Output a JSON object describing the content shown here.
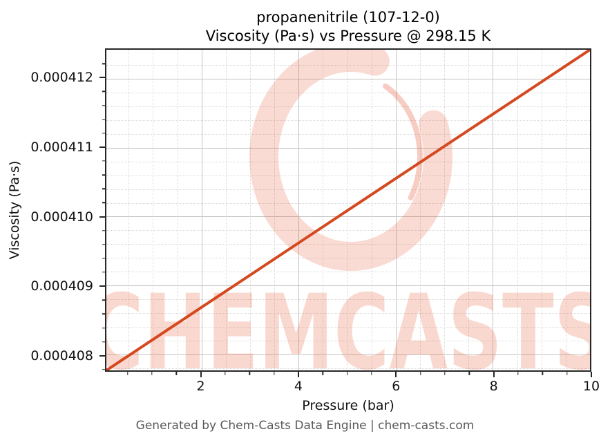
{
  "page": {
    "footer": "Generated by Chem-Casts Data Engine | chem-casts.com"
  },
  "watermark": {
    "text": "CHEMCASTS",
    "color": "#e65a37"
  },
  "chart_data": {
    "type": "line",
    "title": "propanenitrile (107-12-0)",
    "subtitle": "Viscosity (Pa·s) vs Pressure @ 298.15 K",
    "xlabel": "Pressure (bar)",
    "ylabel": "Viscosity (Pa·s)",
    "xlim": [
      0.04,
      10
    ],
    "ylim": [
      0.00040777,
      0.00041242
    ],
    "xticks": [
      2,
      4,
      6,
      8,
      10
    ],
    "xtick_labels": [
      "2",
      "4",
      "6",
      "8",
      "10"
    ],
    "yticks": [
      0.000408,
      0.000409,
      0.00041,
      0.000411,
      0.000412
    ],
    "ytick_labels": [
      "0.000408",
      "0.000409",
      "0.000410",
      "0.000411",
      "0.000412"
    ],
    "minor_xticks": [
      0.5,
      1,
      1.5,
      2.5,
      3,
      3.5,
      4.5,
      5,
      5.5,
      6.5,
      7,
      7.5,
      8.5,
      9,
      9.5
    ],
    "minor_yticks": [
      0.0004078,
      0.0004082,
      0.0004084,
      0.0004086,
      0.0004088,
      0.0004092,
      0.0004094,
      0.0004096,
      0.0004098,
      0.0004102,
      0.0004104,
      0.0004106,
      0.0004108,
      0.0004112,
      0.0004114,
      0.0004116,
      0.0004118,
      0.0004122
    ],
    "grid": {
      "major": true,
      "minor": true
    },
    "legend": null,
    "series": [
      {
        "name": "viscosity-vs-pressure",
        "color": "#d4491f",
        "x": [
          0.04,
          2,
          4,
          6,
          8,
          10
        ],
        "y": [
          0.00040777,
          0.000408685,
          0.000409619,
          0.000410553,
          0.000411486,
          0.00041242
        ]
      }
    ],
    "colors": {
      "line": "#d4491f",
      "grid_major": "#c3c3c3",
      "grid_minor": "#d8d8d8",
      "spine": "#262626",
      "footer_text": "#595959"
    }
  }
}
